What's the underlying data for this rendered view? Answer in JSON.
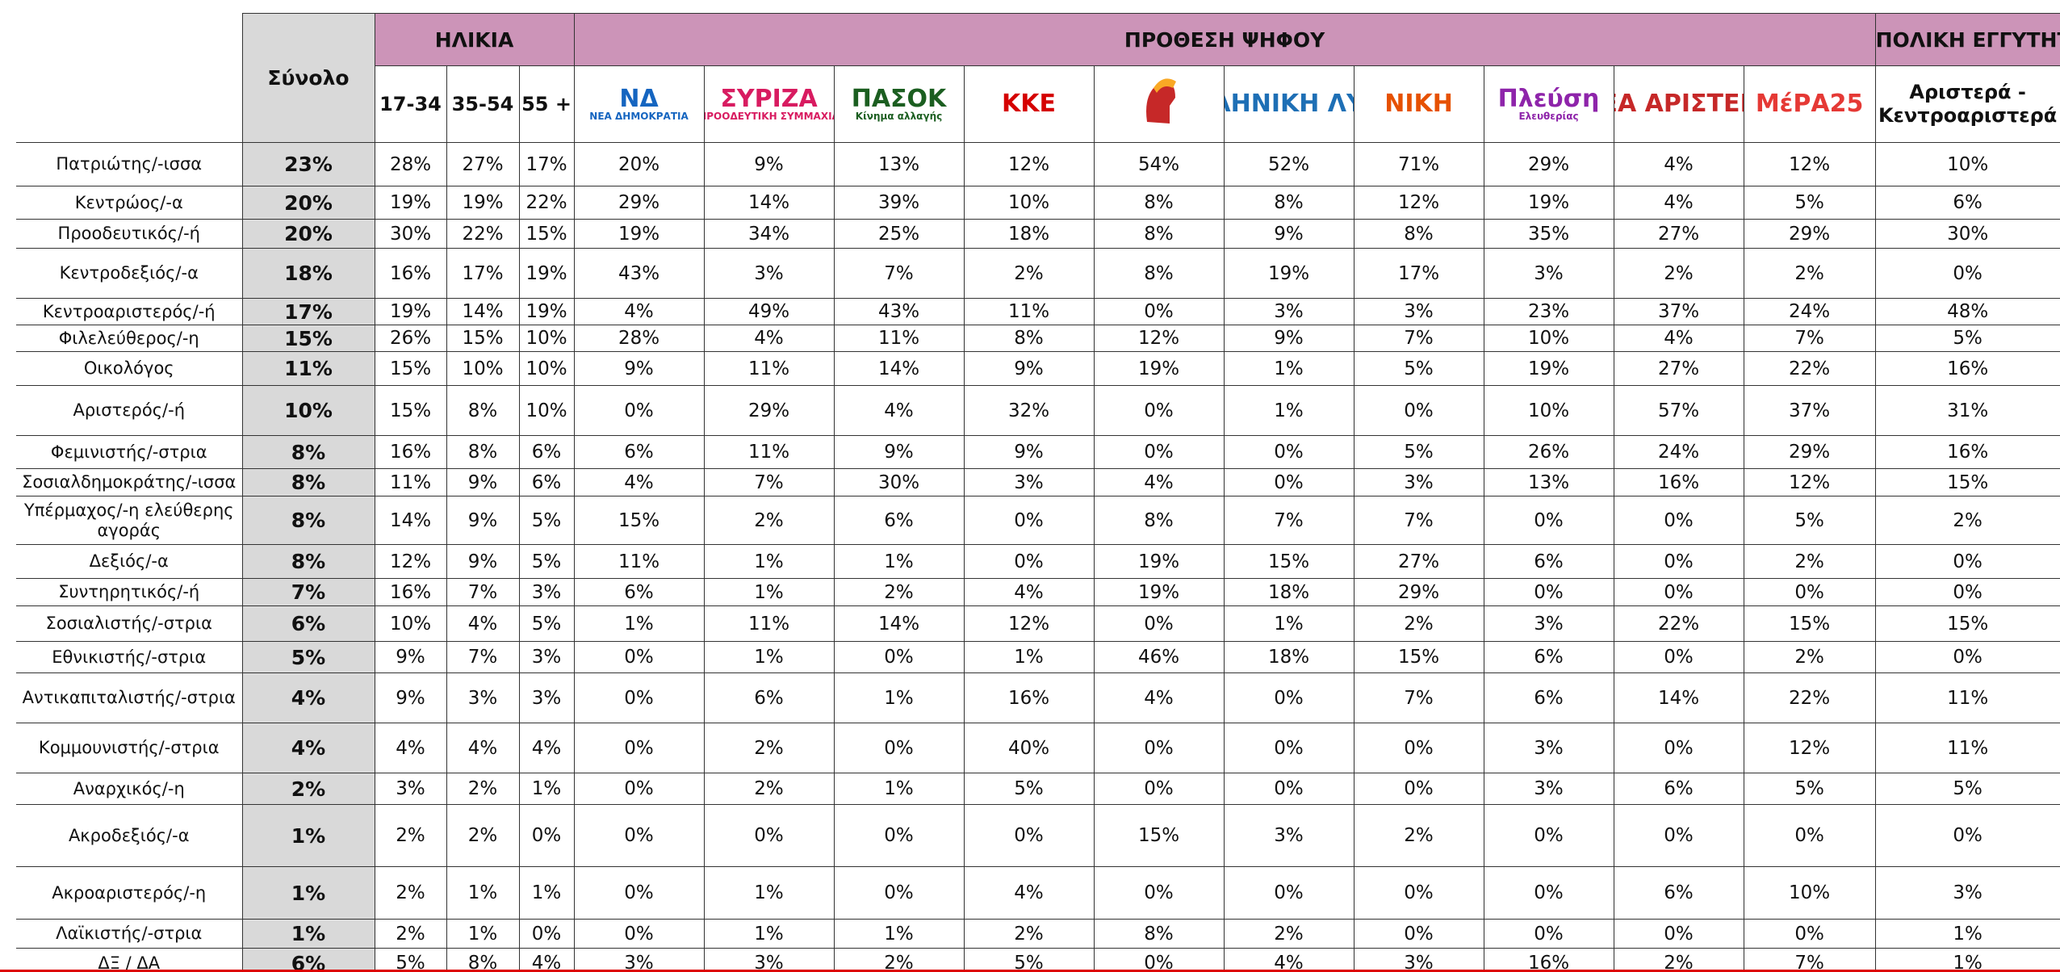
{
  "header": {
    "total": "Σύνολο",
    "groups": [
      "ΗΛΙΚΙΑ",
      "ΠΡΟΘΕΣΗ ΨΗΦΟΥ",
      "ΠΟΛΙΚΗ ΕΓΓΥΤΗΤΑ"
    ],
    "ages": [
      "17-34",
      "35-54",
      "55 +"
    ],
    "parties": [
      {
        "lines": [
          "ΝΔ",
          "ΝΕΑ ΔΗΜΟΚΡΑΤΙΑ"
        ],
        "color": "#1565c0"
      },
      {
        "lines": [
          "ΣΥΡΙΖΑ",
          "ΠΡΟΟΔΕΥΤΙΚΗ ΣΥΜΜΑΧΙΑ"
        ],
        "color": "#d81b60"
      },
      {
        "lines": [
          "ΠΑΣΟΚ",
          "Κίνημα αλλαγής"
        ],
        "color": "#1b5e20"
      },
      {
        "lines": [
          "ΚΚΕ"
        ],
        "color": "#d50000"
      },
      null,
      {
        "lines": [
          "ΕΛΛΗΝΙΚΗ ΛΥΣΗ"
        ],
        "color": "#1e6fb5"
      },
      {
        "lines": [
          "ΝΙΚΗ"
        ],
        "color": "#e65100"
      },
      {
        "lines": [
          "Πλεύση",
          "Ελευθερίας"
        ],
        "color": "#8e24aa"
      },
      {
        "lines": [
          "ΝΕΑ ΑΡΙΣΤΕΡΑ"
        ],
        "color": "#c62828"
      },
      {
        "lines": [
          "ΜέΡΑ25"
        ],
        "color": "#e53935"
      }
    ],
    "proximity": "Αριστερά - Κεντροαριστερά"
  },
  "table": {
    "rows": [
      [
        "Πατριώτης/-ισσα",
        "23%",
        "28%",
        "27%",
        "17%",
        "20%",
        "9%",
        "13%",
        "12%",
        "54%",
        "52%",
        "71%",
        "29%",
        "4%",
        "12%",
        "10%"
      ],
      [
        "Κεντρώος/-α",
        "20%",
        "19%",
        "19%",
        "22%",
        "29%",
        "14%",
        "39%",
        "10%",
        "8%",
        "8%",
        "12%",
        "19%",
        "4%",
        "5%",
        "6%"
      ],
      [
        "Προοδευτικός/-ή",
        "20%",
        "30%",
        "22%",
        "15%",
        "19%",
        "34%",
        "25%",
        "18%",
        "8%",
        "9%",
        "8%",
        "35%",
        "27%",
        "29%",
        "30%"
      ],
      [
        "Κεντροδεξιός/-α",
        "18%",
        "16%",
        "17%",
        "19%",
        "43%",
        "3%",
        "7%",
        "2%",
        "8%",
        "19%",
        "17%",
        "3%",
        "2%",
        "2%",
        "0%"
      ],
      [
        "Κεντροαριστερός/-ή",
        "17%",
        "19%",
        "14%",
        "19%",
        "4%",
        "49%",
        "43%",
        "11%",
        "0%",
        "3%",
        "3%",
        "23%",
        "37%",
        "24%",
        "48%"
      ],
      [
        "Φιλελεύθερος/-η",
        "15%",
        "26%",
        "15%",
        "10%",
        "28%",
        "4%",
        "11%",
        "8%",
        "12%",
        "9%",
        "7%",
        "10%",
        "4%",
        "7%",
        "5%"
      ],
      [
        "Οικολόγος",
        "11%",
        "15%",
        "10%",
        "10%",
        "9%",
        "11%",
        "14%",
        "9%",
        "19%",
        "1%",
        "5%",
        "19%",
        "27%",
        "22%",
        "16%"
      ],
      [
        "Αριστερός/-ή",
        "10%",
        "15%",
        "8%",
        "10%",
        "0%",
        "29%",
        "4%",
        "32%",
        "0%",
        "1%",
        "0%",
        "10%",
        "57%",
        "37%",
        "31%"
      ],
      [
        "Φεμινιστής/-στρια",
        "8%",
        "16%",
        "8%",
        "6%",
        "6%",
        "11%",
        "9%",
        "9%",
        "0%",
        "0%",
        "5%",
        "26%",
        "24%",
        "29%",
        "16%"
      ],
      [
        "Σοσιαλδημοκράτης/-ισσα",
        "8%",
        "11%",
        "9%",
        "6%",
        "4%",
        "7%",
        "30%",
        "3%",
        "4%",
        "0%",
        "3%",
        "13%",
        "16%",
        "12%",
        "15%"
      ],
      [
        "Υπέρμαχος/-η ελεύθερης αγοράς",
        "8%",
        "14%",
        "9%",
        "5%",
        "15%",
        "2%",
        "6%",
        "0%",
        "8%",
        "7%",
        "7%",
        "0%",
        "0%",
        "5%",
        "2%"
      ],
      [
        "Δεξιός/-α",
        "8%",
        "12%",
        "9%",
        "5%",
        "11%",
        "1%",
        "1%",
        "0%",
        "19%",
        "15%",
        "27%",
        "6%",
        "0%",
        "2%",
        "0%"
      ],
      [
        "Συντηρητικός/-ή",
        "7%",
        "16%",
        "7%",
        "3%",
        "6%",
        "1%",
        "2%",
        "4%",
        "19%",
        "18%",
        "29%",
        "0%",
        "0%",
        "0%",
        "0%"
      ],
      [
        "Σοσιαλιστής/-στρια",
        "6%",
        "10%",
        "4%",
        "5%",
        "1%",
        "11%",
        "14%",
        "12%",
        "0%",
        "1%",
        "2%",
        "3%",
        "22%",
        "15%",
        "15%"
      ],
      [
        "Εθνικιστής/-στρια",
        "5%",
        "9%",
        "7%",
        "3%",
        "0%",
        "1%",
        "0%",
        "1%",
        "46%",
        "18%",
        "15%",
        "6%",
        "0%",
        "2%",
        "0%"
      ],
      [
        "Αντικαπιταλιστής/-στρια",
        "4%",
        "9%",
        "3%",
        "3%",
        "0%",
        "6%",
        "1%",
        "16%",
        "4%",
        "0%",
        "7%",
        "6%",
        "14%",
        "22%",
        "11%"
      ],
      [
        "Κομμουνιστής/-στρια",
        "4%",
        "4%",
        "4%",
        "4%",
        "0%",
        "2%",
        "0%",
        "40%",
        "0%",
        "0%",
        "0%",
        "3%",
        "0%",
        "12%",
        "11%"
      ],
      [
        "Αναρχικός/-η",
        "2%",
        "3%",
        "2%",
        "1%",
        "0%",
        "2%",
        "1%",
        "5%",
        "0%",
        "0%",
        "0%",
        "3%",
        "6%",
        "5%",
        "5%"
      ],
      [
        "Ακροδεξιός/-α",
        "1%",
        "2%",
        "2%",
        "0%",
        "0%",
        "0%",
        "0%",
        "0%",
        "15%",
        "3%",
        "2%",
        "0%",
        "0%",
        "0%",
        "0%"
      ],
      [
        "Ακροαριστερός/-η",
        "1%",
        "2%",
        "1%",
        "1%",
        "0%",
        "1%",
        "0%",
        "4%",
        "0%",
        "0%",
        "0%",
        "0%",
        "6%",
        "10%",
        "3%"
      ],
      [
        "Λαϊκιστής/-στρια",
        "1%",
        "2%",
        "1%",
        "0%",
        "0%",
        "1%",
        "1%",
        "2%",
        "8%",
        "2%",
        "0%",
        "0%",
        "0%",
        "0%",
        "1%"
      ],
      [
        "ΔΞ / ΔΑ",
        "6%",
        "5%",
        "8%",
        "4%",
        "3%",
        "3%",
        "2%",
        "5%",
        "0%",
        "4%",
        "3%",
        "16%",
        "2%",
        "7%",
        "1%"
      ]
    ]
  }
}
